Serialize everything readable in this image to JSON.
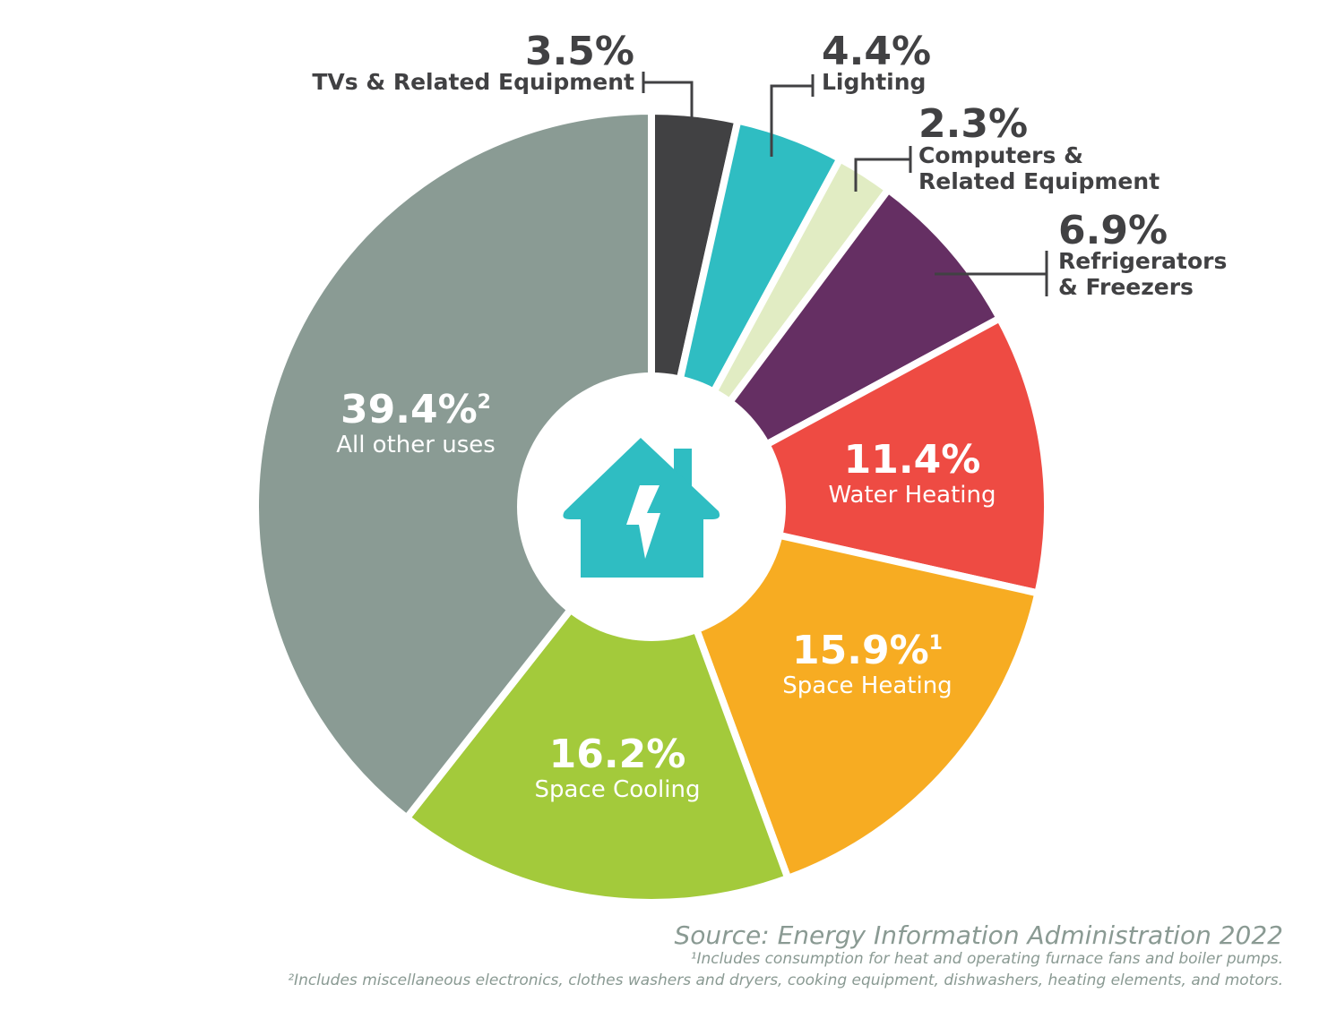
{
  "chart_data": {
    "type": "pie",
    "style": "donut",
    "start": "top, clockwise",
    "slices": [
      {
        "label": "TVs & Related Equipment",
        "value": 3.5,
        "display": "3.5%",
        "color": "#414143",
        "label_position": "outside"
      },
      {
        "label": "Lighting",
        "value": 4.4,
        "display": "4.4%",
        "color": "#2fbdc2",
        "label_position": "outside"
      },
      {
        "label_lines": [
          "Computers &",
          "Related Equipment"
        ],
        "value": 2.3,
        "display": "2.3%",
        "color": "#e1ecc3",
        "label_position": "outside"
      },
      {
        "label_lines": [
          "Refrigerators",
          "& Freezers"
        ],
        "value": 6.9,
        "display": "6.9%",
        "color": "#652f63",
        "label_position": "outside"
      },
      {
        "label": "Water Heating",
        "value": 11.4,
        "display": "11.4%",
        "color": "#ee4b43",
        "label_position": "inside"
      },
      {
        "label": "Space Heating",
        "value": 15.9,
        "display": "15.9%",
        "sup": "1",
        "color": "#f7ac22",
        "label_position": "inside"
      },
      {
        "label": "Space Cooling",
        "value": 16.2,
        "display": "16.2%",
        "color": "#a3ca3b",
        "label_position": "inside"
      },
      {
        "label": "All other uses",
        "value": 39.4,
        "display": "39.4%",
        "sup": "2",
        "color": "#8a9b94",
        "label_position": "inside"
      }
    ],
    "center_icon": "house-lightning-icon",
    "center_icon_color": "#2fbdc2"
  },
  "footer": {
    "source": "Source: Energy Information Administration 2022",
    "note1": "¹Includes consumption for heat and operating furnace fans and boiler pumps.",
    "note2": "²Includes miscellaneous electronics, clothes washers and dryers, cooking equipment, dishwashers, heating elements, and motors."
  }
}
